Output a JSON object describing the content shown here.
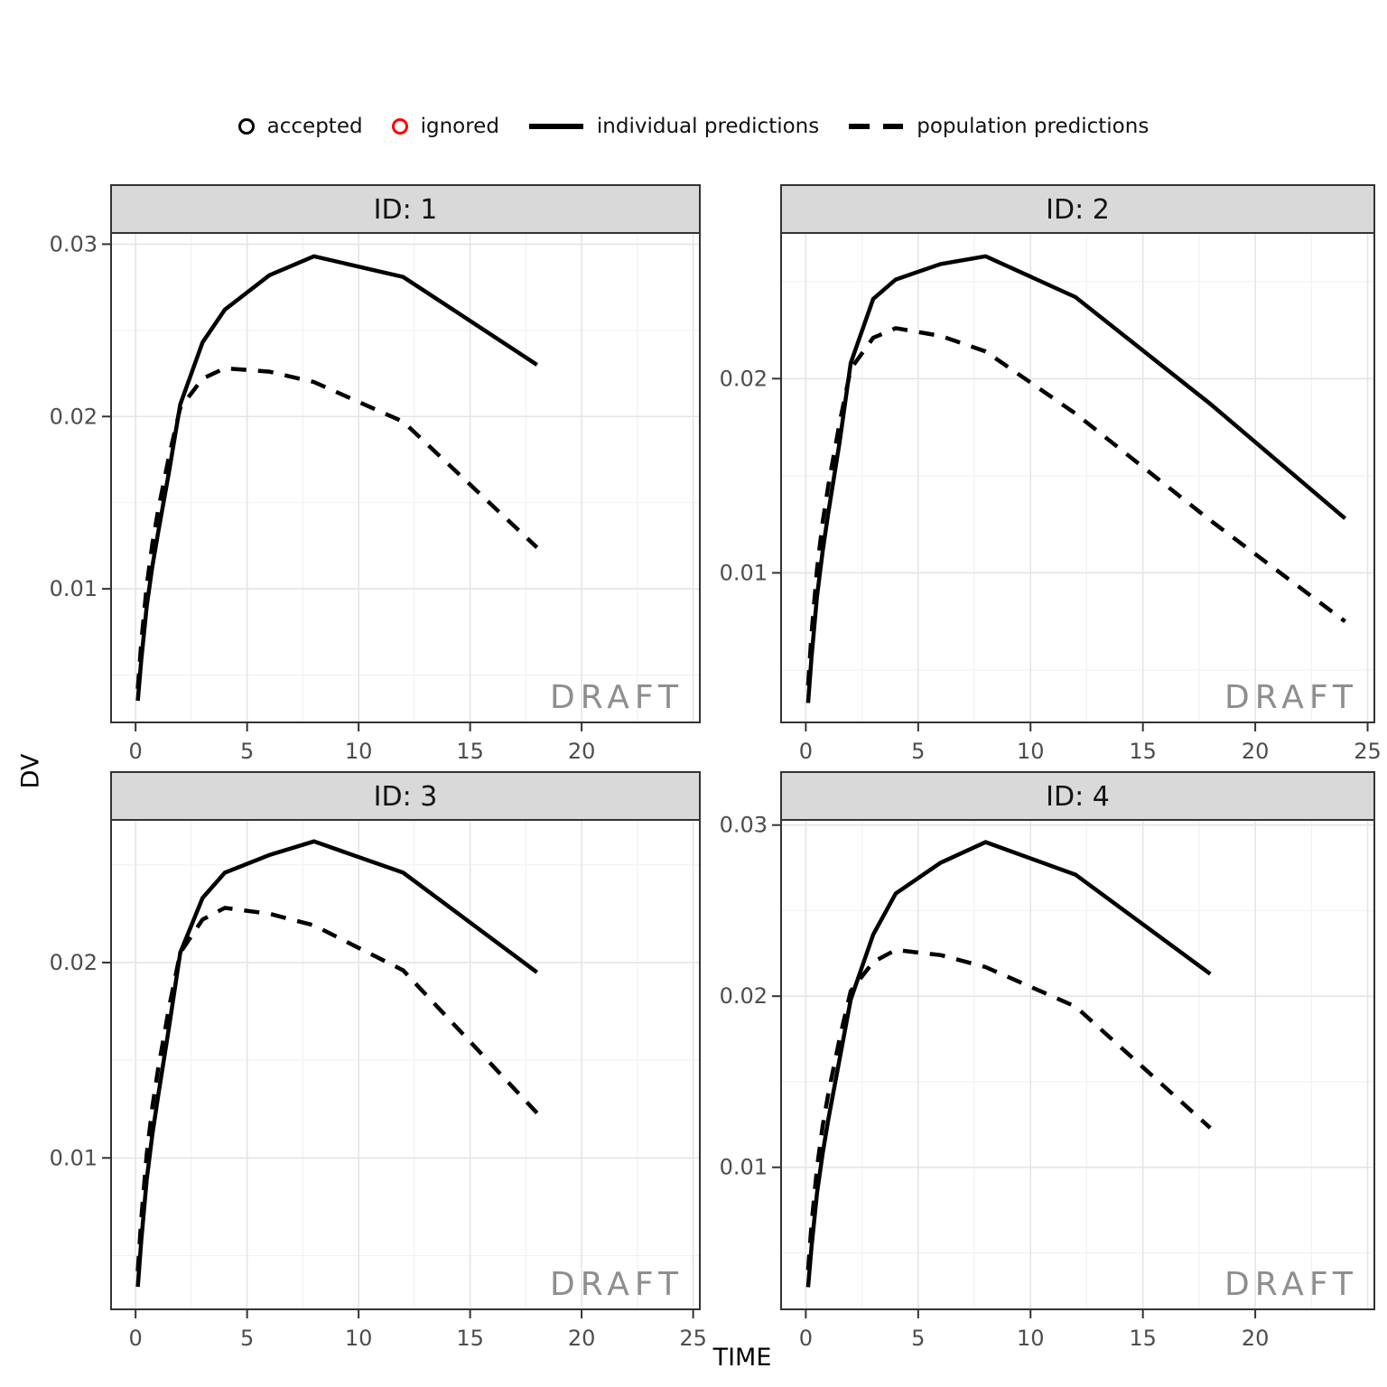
{
  "legend": {
    "items": [
      {
        "label": "accepted",
        "marker": "open-circle",
        "color": "#000000"
      },
      {
        "label": "ignored",
        "marker": "open-circle",
        "color": "#FF0000"
      },
      {
        "label": "individual predictions",
        "marker": "solid-line",
        "color": "#000000"
      },
      {
        "label": "population predictions",
        "marker": "dashed-line",
        "color": "#000000"
      }
    ]
  },
  "axes": {
    "x_title": "TIME",
    "y_title": "DV"
  },
  "watermark": {
    "text": "DRAFT",
    "color": "#8E8E8E"
  },
  "style": {
    "strip_fill": "#D9D9D9",
    "strip_border": "#333333",
    "strip_text_color": "#141414",
    "panel_border": "#333333",
    "grid_major": "#E5E5E5",
    "grid_minor": "#F2F2F2",
    "tick_color": "#333333",
    "tick_label_color": "#4D4D4D",
    "line_color": "#000000"
  },
  "grid": {
    "x_major": [
      0,
      5,
      10,
      15,
      20,
      25
    ],
    "x_minor": [
      2.5,
      7.5,
      12.5,
      17.5,
      22.5
    ],
    "y_major": [
      0.01,
      0.02,
      0.03
    ],
    "y_minor": [
      0.005,
      0.015,
      0.025
    ]
  },
  "chart_data": [
    {
      "type": "line",
      "facet_label": "ID: 1",
      "xlabel": "TIME",
      "ylabel": "DV",
      "xlim": [
        -1.1,
        25.3
      ],
      "ylim": [
        0.00225,
        0.03065
      ],
      "x_ticks": [
        0,
        5,
        10,
        15,
        20
      ],
      "y_ticks": [
        0.01,
        0.02,
        0.03
      ],
      "x": [
        0.1,
        0.25,
        0.5,
        0.75,
        1,
        1.5,
        2,
        3,
        4,
        6,
        8,
        12,
        18
      ],
      "series": [
        {
          "name": "individual predictions",
          "style": "solid",
          "values": [
            0.0035,
            0.0058,
            0.009,
            0.0113,
            0.0132,
            0.0168,
            0.0207,
            0.0243,
            0.0262,
            0.0282,
            0.0293,
            0.0281,
            0.023
          ]
        },
        {
          "name": "population predictions",
          "style": "dashed",
          "values": [
            0.0042,
            0.0068,
            0.0102,
            0.0126,
            0.0145,
            0.0177,
            0.0205,
            0.0222,
            0.0228,
            0.0226,
            0.022,
            0.0197,
            0.0124
          ]
        }
      ]
    },
    {
      "type": "line",
      "facet_label": "ID: 2",
      "xlabel": "TIME",
      "ylabel": "DV",
      "xlim": [
        -1.1,
        25.3
      ],
      "ylim": [
        0.0023,
        0.0275
      ],
      "x_ticks": [
        0,
        5,
        10,
        15,
        20,
        25
      ],
      "y_ticks": [
        0.01,
        0.02
      ],
      "x": [
        0.1,
        0.25,
        0.5,
        0.75,
        1,
        1.5,
        2,
        3,
        4,
        6,
        8,
        12,
        18,
        24
      ],
      "series": [
        {
          "name": "individual predictions",
          "style": "solid",
          "values": [
            0.0033,
            0.0056,
            0.0088,
            0.0111,
            0.0131,
            0.0167,
            0.0208,
            0.0241,
            0.0251,
            0.0259,
            0.0263,
            0.0242,
            0.0187,
            0.0128
          ]
        },
        {
          "name": "population predictions",
          "style": "dashed",
          "values": [
            0.0042,
            0.0068,
            0.0102,
            0.0126,
            0.0145,
            0.0177,
            0.0205,
            0.0221,
            0.0226,
            0.0222,
            0.0214,
            0.0182,
            0.0127,
            0.0075
          ]
        }
      ]
    },
    {
      "type": "line",
      "facet_label": "ID: 3",
      "xlabel": "TIME",
      "ylabel": "DV",
      "xlim": [
        -1.1,
        25.3
      ],
      "ylim": [
        0.00225,
        0.0273
      ],
      "x_ticks": [
        0,
        5,
        10,
        15,
        20,
        25
      ],
      "y_ticks": [
        0.01,
        0.02
      ],
      "x": [
        0.1,
        0.25,
        0.5,
        0.75,
        1,
        1.5,
        2,
        3,
        4,
        6,
        8,
        12,
        18
      ],
      "series": [
        {
          "name": "individual predictions",
          "style": "solid",
          "values": [
            0.0034,
            0.0057,
            0.0089,
            0.0112,
            0.0131,
            0.0167,
            0.0205,
            0.0233,
            0.0246,
            0.0255,
            0.0262,
            0.0246,
            0.0195
          ]
        },
        {
          "name": "population predictions",
          "style": "dashed",
          "values": [
            0.0042,
            0.0068,
            0.0102,
            0.0126,
            0.0145,
            0.0177,
            0.0205,
            0.0222,
            0.0228,
            0.0225,
            0.0219,
            0.0196,
            0.0123
          ]
        }
      ]
    },
    {
      "type": "line",
      "facet_label": "ID: 4",
      "xlabel": "TIME",
      "ylabel": "DV",
      "xlim": [
        -1.1,
        25.3
      ],
      "ylim": [
        0.0017,
        0.0303
      ],
      "x_ticks": [
        0,
        5,
        10,
        15,
        20
      ],
      "y_ticks": [
        0.01,
        0.02,
        0.03
      ],
      "x": [
        0.1,
        0.25,
        0.5,
        0.75,
        1,
        1.5,
        2,
        3,
        4,
        6,
        8,
        12,
        18
      ],
      "series": [
        {
          "name": "individual predictions",
          "style": "solid",
          "values": [
            0.003,
            0.0053,
            0.0085,
            0.0108,
            0.0128,
            0.0163,
            0.0198,
            0.0236,
            0.026,
            0.0278,
            0.029,
            0.0271,
            0.0213
          ]
        },
        {
          "name": "population predictions",
          "style": "dashed",
          "values": [
            0.004,
            0.0066,
            0.01,
            0.0124,
            0.0143,
            0.0175,
            0.0203,
            0.022,
            0.0227,
            0.0224,
            0.0217,
            0.0194,
            0.0123
          ]
        }
      ]
    }
  ]
}
